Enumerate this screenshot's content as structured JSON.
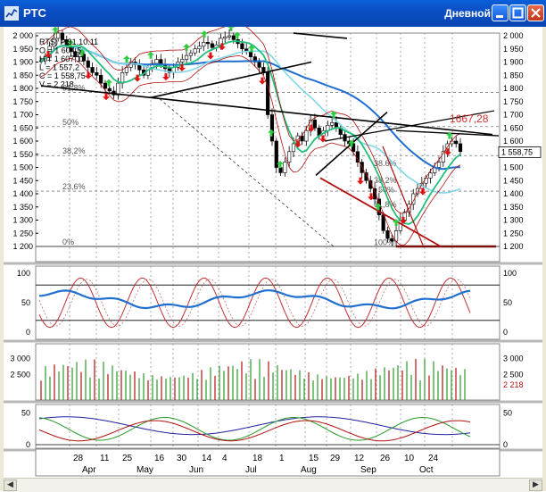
{
  "window": {
    "title": "РТС",
    "timeframe": "Дневной",
    "buttons": [
      "minimize",
      "maximize",
      "close"
    ]
  },
  "info_box": {
    "lines": [
      "RTS) P 31.10.11",
      "O = 1 604,5",
      "H = 1 607,11",
      "L = 1 557,2",
      "C = 1 558,75",
      "V = 2 218"
    ]
  },
  "price_axis": {
    "ticks": [
      "2 000",
      "1 950",
      "1 900",
      "1 850",
      "1 800",
      "1 750",
      "1 700",
      "1 650",
      "1 600",
      "1 550",
      "1 500",
      "1 450",
      "1 400",
      "1 350",
      "1 300",
      "1 250",
      "1 200"
    ],
    "last_price": "1 558,75",
    "annotation": "1667,28"
  },
  "fib_labels_left": [
    "61,8%",
    "50%",
    "38,2%",
    "23,6%",
    "0%"
  ],
  "fib_labels_right": [
    "38,2%",
    "50%",
    "61,8%",
    "100%"
  ],
  "fib_label_right_top": "38.6%",
  "osc1_axis": [
    "100",
    "50",
    "0"
  ],
  "volume_axis": [
    "3 000",
    "2 500"
  ],
  "volume_axis_right": [
    "3 000",
    "2 500",
    "2 218"
  ],
  "osc3_axis": [
    "50",
    "0"
  ],
  "date_axis": {
    "days": [
      "28",
      "11",
      "25",
      "16",
      "30",
      "14",
      "4",
      "18",
      "1",
      "15",
      "29",
      "12",
      "26",
      "10",
      "24"
    ],
    "months": [
      "Apr",
      "May",
      "Jun",
      "Jul",
      "Aug",
      "Sep",
      "Oct"
    ]
  },
  "colors": {
    "title_bar": "#0b4fc4",
    "up_arrow": "#2ecc40",
    "down_arrow": "#e01010",
    "ma_blue": "#1f6fd0",
    "ma_cyan": "#7fd6e6",
    "ma_green": "#22c07a",
    "band_red": "#b01010",
    "annotation": "#d03030"
  }
}
